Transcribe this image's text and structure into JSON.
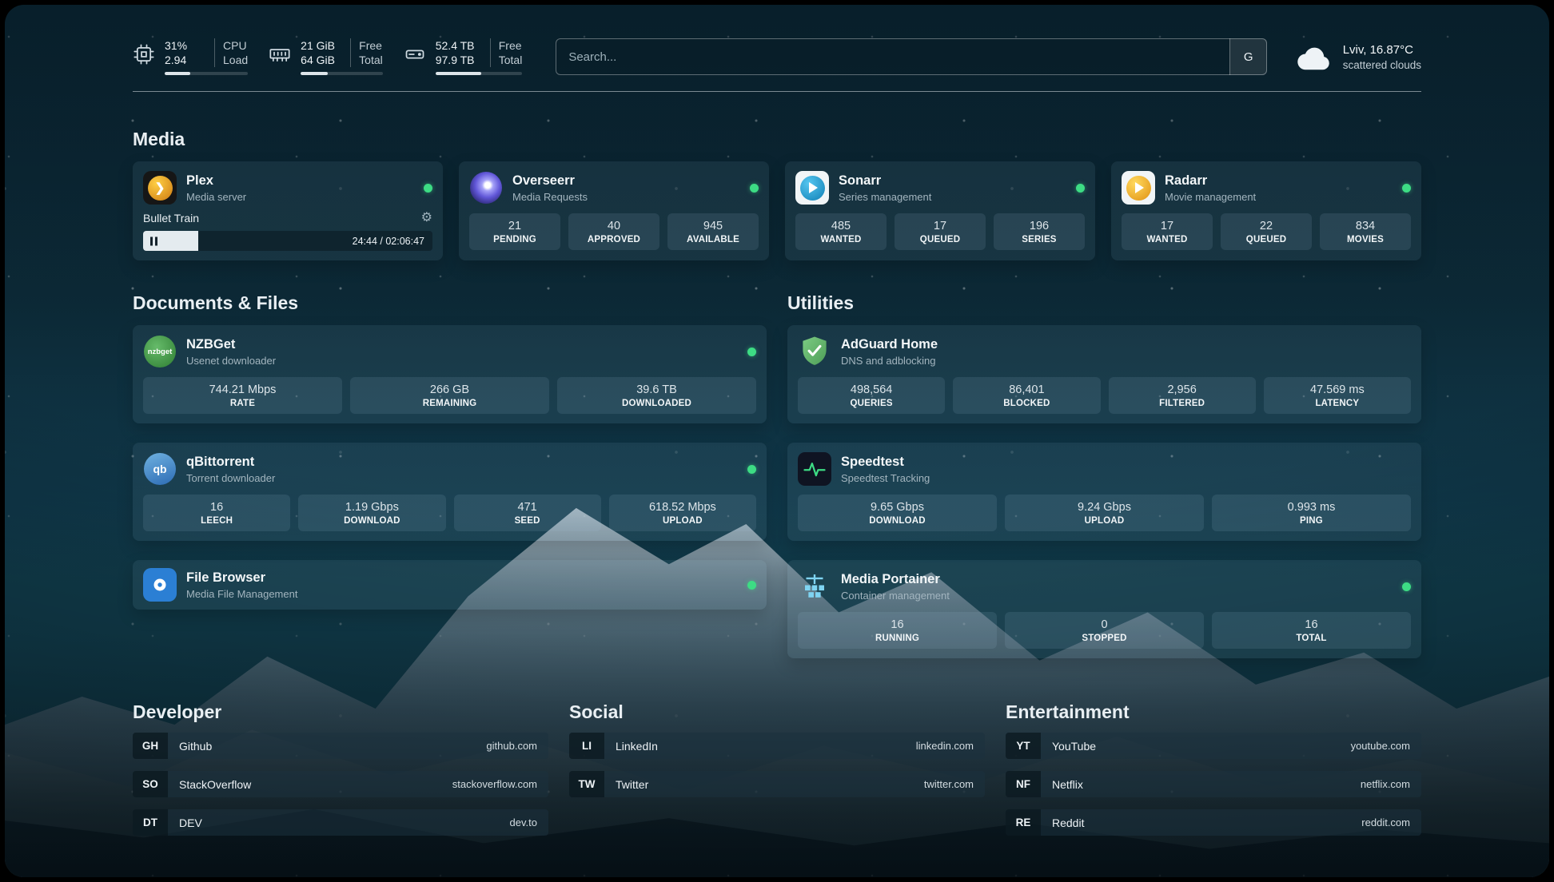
{
  "topbar": {
    "cpu": {
      "values": [
        "31%",
        "2.94"
      ],
      "labels": [
        "CPU",
        "Load"
      ],
      "progress": 31
    },
    "ram": {
      "values": [
        "21 GiB",
        "64 GiB"
      ],
      "labels": [
        "Free",
        "Total"
      ],
      "progress": 33
    },
    "disk": {
      "values": [
        "52.4 TB",
        "97.9 TB"
      ],
      "labels": [
        "Free",
        "Total"
      ],
      "progress": 53
    },
    "search": {
      "placeholder": "Search...",
      "button_label": "G"
    },
    "weather": {
      "location": "Lviv, 16.87°C",
      "condition": "scattered clouds"
    }
  },
  "sections": {
    "media": {
      "title": "Media"
    },
    "documents": {
      "title": "Documents & Files"
    },
    "utilities": {
      "title": "Utilities"
    },
    "developer": {
      "title": "Developer"
    },
    "social": {
      "title": "Social"
    },
    "entertainment": {
      "title": "Entertainment"
    }
  },
  "apps": {
    "plex": {
      "name": "Plex",
      "subtitle": "Media server",
      "now_playing": "Bullet Train",
      "time": "24:44 / 02:06:47",
      "progress": 19
    },
    "overseerr": {
      "name": "Overseerr",
      "subtitle": "Media Requests",
      "stats": [
        {
          "value": "21",
          "label": "PENDING"
        },
        {
          "value": "40",
          "label": "APPROVED"
        },
        {
          "value": "945",
          "label": "AVAILABLE"
        }
      ]
    },
    "sonarr": {
      "name": "Sonarr",
      "subtitle": "Series management",
      "stats": [
        {
          "value": "485",
          "label": "WANTED"
        },
        {
          "value": "17",
          "label": "QUEUED"
        },
        {
          "value": "196",
          "label": "SERIES"
        }
      ]
    },
    "radarr": {
      "name": "Radarr",
      "subtitle": "Movie management",
      "stats": [
        {
          "value": "17",
          "label": "WANTED"
        },
        {
          "value": "22",
          "label": "QUEUED"
        },
        {
          "value": "834",
          "label": "MOVIES"
        }
      ]
    },
    "nzbget": {
      "name": "NZBGet",
      "subtitle": "Usenet downloader",
      "icon_text": "nzbget",
      "stats": [
        {
          "value": "744.21 Mbps",
          "label": "RATE"
        },
        {
          "value": "266 GB",
          "label": "REMAINING"
        },
        {
          "value": "39.6 TB",
          "label": "DOWNLOADED"
        }
      ]
    },
    "qbittorrent": {
      "name": "qBittorrent",
      "subtitle": "Torrent downloader",
      "icon_text": "qb",
      "stats": [
        {
          "value": "16",
          "label": "LEECH"
        },
        {
          "value": "1.19 Gbps",
          "label": "DOWNLOAD"
        },
        {
          "value": "471",
          "label": "SEED"
        },
        {
          "value": "618.52 Mbps",
          "label": "UPLOAD"
        }
      ]
    },
    "filebrowser": {
      "name": "File Browser",
      "subtitle": "Media File Management"
    },
    "adguard": {
      "name": "AdGuard Home",
      "subtitle": "DNS and adblocking",
      "stats": [
        {
          "value": "498,564",
          "label": "QUERIES"
        },
        {
          "value": "86,401",
          "label": "BLOCKED"
        },
        {
          "value": "2,956",
          "label": "FILTERED"
        },
        {
          "value": "47.569 ms",
          "label": "LATENCY"
        }
      ]
    },
    "speedtest": {
      "name": "Speedtest",
      "subtitle": "Speedtest Tracking",
      "stats": [
        {
          "value": "9.65 Gbps",
          "label": "DOWNLOAD"
        },
        {
          "value": "9.24 Gbps",
          "label": "UPLOAD"
        },
        {
          "value": "0.993 ms",
          "label": "PING"
        }
      ]
    },
    "portainer": {
      "name": "Media Portainer",
      "subtitle": "Container management",
      "stats": [
        {
          "value": "16",
          "label": "RUNNING"
        },
        {
          "value": "0",
          "label": "STOPPED"
        },
        {
          "value": "16",
          "label": "TOTAL"
        }
      ]
    }
  },
  "links": {
    "developer": [
      {
        "abbr": "GH",
        "name": "Github",
        "url": "github.com"
      },
      {
        "abbr": "SO",
        "name": "StackOverflow",
        "url": "stackoverflow.com"
      },
      {
        "abbr": "DT",
        "name": "DEV",
        "url": "dev.to"
      }
    ],
    "social": [
      {
        "abbr": "LI",
        "name": "LinkedIn",
        "url": "linkedin.com"
      },
      {
        "abbr": "TW",
        "name": "Twitter",
        "url": "twitter.com"
      }
    ],
    "entertainment": [
      {
        "abbr": "YT",
        "name": "YouTube",
        "url": "youtube.com"
      },
      {
        "abbr": "NF",
        "name": "Netflix",
        "url": "netflix.com"
      },
      {
        "abbr": "RE",
        "name": "Reddit",
        "url": "reddit.com"
      }
    ]
  },
  "colors": {
    "status_online": "#3ddc84",
    "accent_plex": "#e5a00d",
    "accent_overseerr": "#6157d8",
    "accent_sonarr": "#35c5f4",
    "accent_radarr": "#ffc230",
    "accent_nzbget": "#43a047",
    "accent_qbittorrent": "#2d6cb5",
    "accent_filebrowser": "#2b7fd4",
    "accent_adguard": "#68bc71",
    "accent_speedtest": "#3ddc84",
    "accent_portainer": "#7fd4f2"
  }
}
